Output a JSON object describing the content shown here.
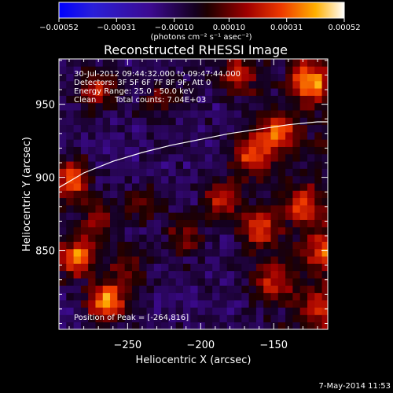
{
  "chart_data": {
    "type": "heatmap",
    "title": "Reconstructed RHESSI Image",
    "xlabel": "Heliocentric X (arcsec)",
    "ylabel": "Heliocentric Y (arcsec)",
    "xlim": [
      -297,
      -113
    ],
    "ylim": [
      796,
      981
    ],
    "x_ticks": [
      -250,
      -200,
      -150
    ],
    "y_ticks": [
      850,
      900,
      950
    ],
    "colorbar": {
      "range": [
        -0.00052,
        0.00052
      ],
      "tick_labels": [
        "-0.00052",
        "-0.00031",
        "-0.00010",
        "0.00010",
        "0.00031",
        "0.00052"
      ],
      "unit_label": "(photons cm⁻² s⁻¹ asec⁻²)"
    },
    "annotations": {
      "time_range": "30-Jul-2012 09:44:32.000 to 09:47:44.000",
      "detectors": "Detectors: 3F 5F 6F 7F 8F 9F, Att 0",
      "energy": "Energy Range: 25.0 - 50.0 keV",
      "clean": "Clean",
      "counts": "Total counts: 7.04E+03",
      "peak": "Position of Peak = [-264,816]"
    },
    "peak_position": [
      -264,
      816
    ],
    "limb_curve": {
      "x": [
        -297,
        -280,
        -260,
        -240,
        -220,
        -200,
        -180,
        -160,
        -140,
        -120,
        -113
      ],
      "y": [
        893,
        903,
        911,
        917,
        922,
        926,
        930,
        933,
        936,
        938,
        938
      ]
    },
    "hot_spots": [
      {
        "x": -264,
        "y": 816,
        "value": 0.00052
      },
      {
        "x": -285,
        "y": 845,
        "value": 0.00045
      },
      {
        "x": -288,
        "y": 898,
        "value": 0.00042
      },
      {
        "x": -125,
        "y": 965,
        "value": 0.00045
      },
      {
        "x": -148,
        "y": 930,
        "value": 0.0004
      },
      {
        "x": -165,
        "y": 915,
        "value": 0.00035
      },
      {
        "x": -175,
        "y": 970,
        "value": 0.00032
      },
      {
        "x": -185,
        "y": 885,
        "value": 0.0003
      },
      {
        "x": -160,
        "y": 865,
        "value": 0.00035
      },
      {
        "x": -130,
        "y": 880,
        "value": 0.0003
      },
      {
        "x": -115,
        "y": 850,
        "value": 0.0003
      },
      {
        "x": -150,
        "y": 830,
        "value": 0.00028
      },
      {
        "x": -120,
        "y": 810,
        "value": 0.00025
      },
      {
        "x": -210,
        "y": 860,
        "value": 0.00022
      },
      {
        "x": -240,
        "y": 880,
        "value": 0.00018
      },
      {
        "x": -270,
        "y": 960,
        "value": 0.0003
      },
      {
        "x": -225,
        "y": 955,
        "value": 0.0002
      },
      {
        "x": -270,
        "y": 870,
        "value": 0.00025
      },
      {
        "x": -250,
        "y": 840,
        "value": 0.0002
      }
    ],
    "grid": false
  },
  "footer": {
    "date": "7-May-2014 11:53"
  }
}
